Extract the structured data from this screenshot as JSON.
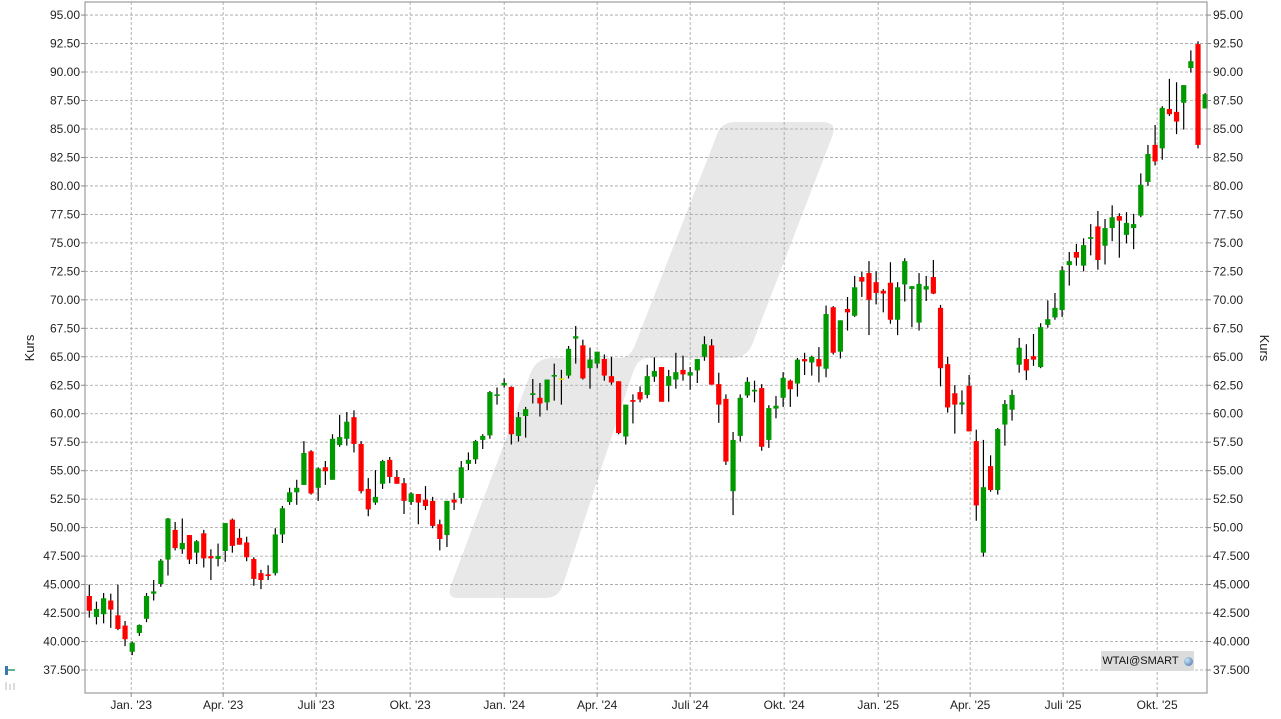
{
  "chart_data": {
    "type": "candlestick",
    "ylabel_left": "Kurs",
    "ylabel_right": "Kurs",
    "ylim": [
      35.5,
      96.5
    ],
    "y_ticks": [
      {
        "v": 95,
        "label": "95.00"
      },
      {
        "v": 92.5,
        "label": "92.50"
      },
      {
        "v": 90,
        "label": "90.00"
      },
      {
        "v": 87.5,
        "label": "87.50"
      },
      {
        "v": 85,
        "label": "85.00"
      },
      {
        "v": 82.5,
        "label": "82.50"
      },
      {
        "v": 80,
        "label": "80.00"
      },
      {
        "v": 77.5,
        "label": "77.50"
      },
      {
        "v": 75,
        "label": "75.00"
      },
      {
        "v": 72.5,
        "label": "72.50"
      },
      {
        "v": 70,
        "label": "70.00"
      },
      {
        "v": 67.5,
        "label": "67.50"
      },
      {
        "v": 65,
        "label": "65.00"
      },
      {
        "v": 62.5,
        "label": "62.50"
      },
      {
        "v": 60,
        "label": "60.00"
      },
      {
        "v": 57.5,
        "label": "57.50"
      },
      {
        "v": 55,
        "label": "55.00"
      },
      {
        "v": 52.5,
        "label": "52.50"
      },
      {
        "v": 50,
        "label": "50.00"
      },
      {
        "v": 47.5,
        "label": "47.500"
      },
      {
        "v": 45,
        "label": "45.000"
      },
      {
        "v": 42.5,
        "label": "42.500"
      },
      {
        "v": 40,
        "label": "40.000"
      },
      {
        "v": 37.5,
        "label": "37.500"
      }
    ],
    "x_ticks": [
      {
        "date": "2023-01-01",
        "label": "Jan. '23"
      },
      {
        "date": "2023-04-01",
        "label": "Apr. '23"
      },
      {
        "date": "2023-07-01",
        "label": "Juli '23"
      },
      {
        "date": "2023-10-01",
        "label": "Okt. '23"
      },
      {
        "date": "2024-01-01",
        "label": "Jan. '24"
      },
      {
        "date": "2024-04-01",
        "label": "Apr. '24"
      },
      {
        "date": "2024-07-01",
        "label": "Juli '24"
      },
      {
        "date": "2024-10-01",
        "label": "Okt. '24"
      },
      {
        "date": "2025-01-01",
        "label": "Jan. '25"
      },
      {
        "date": "2025-04-01",
        "label": "Apr. '25"
      },
      {
        "date": "2025-07-01",
        "label": "Juli '25"
      },
      {
        "date": "2025-10-01",
        "label": "Okt. '25"
      }
    ],
    "grid": true,
    "colors": {
      "up": "#009900",
      "down": "#ff0000",
      "unchanged": "#e6e600",
      "wick": "#000000",
      "watermark": "#e8e8e8",
      "grid": "#a0a0a0"
    },
    "columns": [
      "date",
      "open",
      "high",
      "low",
      "close"
    ],
    "candles": [
      [
        "2022-11-21",
        44.0,
        45.0,
        42.1,
        42.7
      ],
      [
        "2022-11-28",
        42.15,
        43.5,
        41.5,
        42.86
      ],
      [
        "2022-12-05",
        42.4,
        44.26,
        41.6,
        43.8
      ],
      [
        "2022-12-12",
        43.6,
        44.2,
        41.2,
        42.8
      ],
      [
        "2022-12-19",
        42.3,
        45.0,
        41.0,
        41.1
      ],
      [
        "2022-12-26",
        41.4,
        41.8,
        39.6,
        40.2
      ],
      [
        "2023-01-02",
        39.1,
        40.0,
        38.8,
        39.9
      ],
      [
        "2023-01-09",
        40.75,
        41.5,
        40.5,
        41.45
      ],
      [
        "2023-01-16",
        42.0,
        44.26,
        41.7,
        44.0
      ],
      [
        "2023-01-23",
        44.2,
        45.4,
        43.6,
        44.4
      ],
      [
        "2023-01-30",
        45.05,
        47.25,
        44.8,
        47.1
      ],
      [
        "2023-02-06",
        47.2,
        50.85,
        45.8,
        50.8
      ],
      [
        "2023-02-13",
        49.8,
        50.5,
        48.0,
        48.2
      ],
      [
        "2023-02-20",
        48.1,
        50.8,
        47.7,
        48.65
      ],
      [
        "2023-02-27",
        49.35,
        49.35,
        46.8,
        47.2
      ],
      [
        "2023-03-06",
        47.8,
        48.9,
        46.8,
        48.8
      ],
      [
        "2023-03-13",
        49.5,
        49.8,
        46.5,
        47.3
      ],
      [
        "2023-03-20",
        47.5,
        48.1,
        45.4,
        47.3
      ],
      [
        "2023-03-27",
        47.25,
        48.6,
        46.6,
        47.5
      ],
      [
        "2023-04-03",
        47.95,
        50.4,
        47.0,
        50.4
      ],
      [
        "2023-04-10",
        50.7,
        50.8,
        47.8,
        48.4
      ],
      [
        "2023-04-17",
        49.1,
        49.9,
        48.5,
        48.5
      ],
      [
        "2023-04-24",
        48.7,
        49.2,
        47.05,
        47.4
      ],
      [
        "2023-05-01",
        47.25,
        47.4,
        44.9,
        45.5
      ],
      [
        "2023-05-08",
        46.0,
        46.3,
        44.6,
        45.4
      ],
      [
        "2023-05-15",
        45.9,
        46.7,
        45.4,
        45.75
      ],
      [
        "2023-05-22",
        46.0,
        49.95,
        45.8,
        49.4
      ],
      [
        "2023-05-29",
        49.4,
        51.9,
        48.65,
        51.7
      ],
      [
        "2023-06-05",
        52.25,
        53.5,
        52.0,
        53.1
      ],
      [
        "2023-06-12",
        53.1,
        54.2,
        52.0,
        53.5
      ],
      [
        "2023-06-19",
        53.75,
        57.6,
        53.75,
        56.55
      ],
      [
        "2023-06-26",
        56.7,
        56.8,
        52.9,
        53.0
      ],
      [
        "2023-07-03",
        53.5,
        55.3,
        52.35,
        55.2
      ],
      [
        "2023-07-10",
        55.3,
        55.85,
        53.75,
        54.95
      ],
      [
        "2023-07-17",
        54.2,
        58.2,
        54.2,
        57.8
      ],
      [
        "2023-07-24",
        57.25,
        59.9,
        57.1,
        57.95
      ],
      [
        "2023-07-31",
        57.8,
        60.15,
        57.2,
        59.3
      ],
      [
        "2023-08-07",
        59.7,
        60.3,
        56.6,
        57.35
      ],
      [
        "2023-08-14",
        57.35,
        57.6,
        53.0,
        53.2
      ],
      [
        "2023-08-21",
        53.4,
        54.35,
        51.0,
        51.6
      ],
      [
        "2023-08-28",
        52.2,
        55.05,
        52.0,
        52.7
      ],
      [
        "2023-09-04",
        53.85,
        55.95,
        53.4,
        55.85
      ],
      [
        "2023-09-11",
        55.95,
        56.2,
        53.9,
        54.45
      ],
      [
        "2023-09-18",
        54.45,
        55.05,
        53.85,
        53.85
      ],
      [
        "2023-09-25",
        53.9,
        54.35,
        51.2,
        52.35
      ],
      [
        "2023-10-02",
        52.25,
        53.1,
        52.0,
        53.0
      ],
      [
        "2023-10-09",
        52.95,
        52.95,
        50.3,
        52.2
      ],
      [
        "2023-10-16",
        52.45,
        53.65,
        51.55,
        51.9
      ],
      [
        "2023-10-23",
        52.35,
        52.7,
        49.95,
        50.15
      ],
      [
        "2023-10-30",
        50.3,
        50.7,
        48.0,
        49.0
      ],
      [
        "2023-11-06",
        49.35,
        52.35,
        48.3,
        52.35
      ],
      [
        "2023-11-13",
        52.45,
        53.05,
        51.55,
        52.2
      ],
      [
        "2023-11-20",
        52.6,
        55.85,
        52.1,
        55.3
      ],
      [
        "2023-11-27",
        55.6,
        56.6,
        55.05,
        55.95
      ],
      [
        "2023-12-04",
        56.0,
        57.7,
        55.6,
        57.6
      ],
      [
        "2023-12-11",
        57.7,
        58.2,
        56.9,
        58.05
      ],
      [
        "2023-12-18",
        58.1,
        62.0,
        57.8,
        61.9
      ],
      [
        "2023-12-25",
        61.6,
        62.3,
        60.8,
        61.7
      ],
      [
        "2024-01-01",
        62.5,
        63.1,
        62.3,
        62.7
      ],
      [
        "2024-01-08",
        62.35,
        62.4,
        57.3,
        58.2
      ],
      [
        "2024-01-15",
        58.05,
        60.15,
        57.55,
        59.7
      ],
      [
        "2024-01-22",
        59.8,
        60.6,
        57.9,
        60.4
      ],
      [
        "2024-01-29",
        61.65,
        63.05,
        60.9,
        61.8
      ],
      [
        "2024-02-05",
        61.4,
        62.7,
        59.75,
        60.9
      ],
      [
        "2024-02-12",
        61.0,
        63.0,
        60.3,
        63.0
      ],
      [
        "2024-02-19",
        63.3,
        64.4,
        61.15,
        63.4
      ],
      [
        "2024-02-26",
        63.1,
        63.85,
        60.8,
        63.1
      ],
      [
        "2024-03-04",
        63.35,
        65.95,
        63.1,
        65.7
      ],
      [
        "2024-03-11",
        66.6,
        67.7,
        64.4,
        66.8
      ],
      [
        "2024-03-18",
        66.0,
        66.5,
        63.0,
        63.1
      ],
      [
        "2024-03-25",
        64.0,
        65.8,
        62.2,
        64.75
      ],
      [
        "2024-04-01",
        64.4,
        65.45,
        64.0,
        65.45
      ],
      [
        "2024-04-08",
        64.8,
        65.2,
        62.9,
        63.35
      ],
      [
        "2024-04-15",
        63.3,
        65.0,
        62.55,
        62.75
      ],
      [
        "2024-04-22",
        62.85,
        62.85,
        58.2,
        58.3
      ],
      [
        "2024-04-29",
        58.0,
        60.8,
        57.3,
        60.8
      ],
      [
        "2024-05-06",
        61.2,
        61.7,
        59.15,
        61.05
      ],
      [
        "2024-05-13",
        61.9,
        62.4,
        61.0,
        61.25
      ],
      [
        "2024-05-20",
        61.65,
        64.3,
        61.35,
        63.3
      ],
      [
        "2024-05-27",
        63.25,
        64.95,
        62.8,
        63.75
      ],
      [
        "2024-06-03",
        64.1,
        64.1,
        61.05,
        61.05
      ],
      [
        "2024-06-10",
        62.45,
        63.85,
        61.05,
        63.3
      ],
      [
        "2024-06-17",
        63.0,
        65.35,
        62.2,
        63.65
      ],
      [
        "2024-06-24",
        63.85,
        65.1,
        62.9,
        63.45
      ],
      [
        "2024-07-01",
        63.35,
        64.1,
        62.1,
        63.65
      ],
      [
        "2024-07-08",
        63.8,
        64.8,
        62.7,
        64.8
      ],
      [
        "2024-07-15",
        65.0,
        66.8,
        64.65,
        66.1
      ],
      [
        "2024-07-22",
        66.0,
        66.55,
        62.55,
        62.55
      ],
      [
        "2024-07-29",
        62.6,
        63.6,
        59.2,
        60.8
      ],
      [
        "2024-08-05",
        61.3,
        61.7,
        55.5,
        55.8
      ],
      [
        "2024-08-12",
        53.2,
        58.4,
        51.1,
        57.7
      ],
      [
        "2024-08-19",
        58.05,
        61.7,
        57.55,
        61.4
      ],
      [
        "2024-08-26",
        61.6,
        63.2,
        61.4,
        62.8
      ],
      [
        "2024-09-02",
        61.95,
        62.9,
        61.0,
        62.1
      ],
      [
        "2024-09-09",
        62.25,
        62.6,
        56.75,
        57.1
      ],
      [
        "2024-09-16",
        57.7,
        60.75,
        57.0,
        60.5
      ],
      [
        "2024-09-23",
        60.45,
        61.55,
        59.6,
        60.7
      ],
      [
        "2024-09-30",
        61.4,
        63.65,
        60.6,
        63.15
      ],
      [
        "2024-10-07",
        62.9,
        63.0,
        60.6,
        62.15
      ],
      [
        "2024-10-14",
        62.65,
        64.9,
        61.5,
        64.75
      ],
      [
        "2024-10-21",
        64.8,
        65.35,
        63.4,
        64.6
      ],
      [
        "2024-10-28",
        64.5,
        65.1,
        63.35,
        65.0
      ],
      [
        "2024-11-04",
        64.8,
        65.85,
        62.75,
        64.15
      ],
      [
        "2024-11-11",
        63.95,
        69.5,
        63.2,
        68.75
      ],
      [
        "2024-11-18",
        69.35,
        69.45,
        65.2,
        65.35
      ],
      [
        "2024-11-25",
        65.45,
        68.2,
        64.85,
        68.2
      ],
      [
        "2024-12-02",
        69.2,
        70.25,
        67.3,
        68.9
      ],
      [
        "2024-12-09",
        68.6,
        72.1,
        68.5,
        71.1
      ],
      [
        "2024-12-16",
        72.0,
        72.45,
        70.25,
        71.6
      ],
      [
        "2024-12-23",
        72.35,
        73.4,
        66.9,
        70.0
      ],
      [
        "2024-12-30",
        71.55,
        72.5,
        69.6,
        70.6
      ],
      [
        "2025-01-06",
        70.8,
        70.95,
        68.9,
        70.55
      ],
      [
        "2025-01-13",
        71.5,
        73.3,
        67.9,
        68.25
      ],
      [
        "2025-01-20",
        68.25,
        71.55,
        66.9,
        71.1
      ],
      [
        "2025-01-27",
        71.35,
        73.65,
        69.85,
        73.4
      ],
      [
        "2025-02-03",
        70.95,
        71.2,
        67.6,
        71.2
      ],
      [
        "2025-02-10",
        68.0,
        72.35,
        67.3,
        71.4
      ],
      [
        "2025-02-17",
        70.9,
        72.1,
        69.9,
        71.2
      ],
      [
        "2025-02-24",
        72.0,
        73.5,
        70.5,
        70.55
      ],
      [
        "2025-03-03",
        69.3,
        69.55,
        62.4,
        64.0
      ],
      [
        "2025-03-10",
        64.35,
        65.0,
        60.1,
        60.55
      ],
      [
        "2025-03-17",
        61.8,
        62.5,
        58.25,
        60.8
      ],
      [
        "2025-03-24",
        60.8,
        62.05,
        59.95,
        61.0
      ],
      [
        "2025-03-31",
        62.45,
        63.4,
        58.45,
        58.45
      ],
      [
        "2025-04-07",
        57.6,
        58.6,
        50.6,
        51.95
      ],
      [
        "2025-04-14",
        47.8,
        57.7,
        47.45,
        53.55
      ],
      [
        "2025-04-21",
        55.4,
        56.35,
        53.15,
        53.3
      ],
      [
        "2025-04-28",
        53.3,
        58.75,
        52.9,
        58.65
      ],
      [
        "2025-05-05",
        59.05,
        61.2,
        57.2,
        60.85
      ],
      [
        "2025-05-12",
        60.35,
        62.1,
        59.4,
        61.65
      ],
      [
        "2025-05-19",
        64.3,
        66.65,
        63.6,
        65.8
      ],
      [
        "2025-05-26",
        64.8,
        66.1,
        62.95,
        63.8
      ],
      [
        "2025-06-02",
        65.05,
        67.0,
        64.2,
        64.75
      ],
      [
        "2025-06-09",
        64.1,
        67.95,
        64.0,
        67.6
      ],
      [
        "2025-06-16",
        67.8,
        69.95,
        67.55,
        68.3
      ],
      [
        "2025-06-23",
        68.45,
        70.6,
        68.25,
        69.3
      ],
      [
        "2025-06-30",
        69.1,
        72.95,
        68.5,
        72.6
      ],
      [
        "2025-07-07",
        73.05,
        74.2,
        71.25,
        73.4
      ],
      [
        "2025-07-14",
        74.2,
        74.9,
        73.0,
        73.7
      ],
      [
        "2025-07-21",
        73.0,
        75.4,
        72.5,
        74.8
      ],
      [
        "2025-07-28",
        75.35,
        76.65,
        73.9,
        75.5
      ],
      [
        "2025-08-04",
        76.45,
        77.8,
        72.65,
        73.5
      ],
      [
        "2025-08-11",
        74.75,
        77.1,
        73.1,
        76.3
      ],
      [
        "2025-08-18",
        76.3,
        78.3,
        75.15,
        77.25
      ],
      [
        "2025-08-25",
        77.35,
        77.6,
        73.7,
        76.95
      ],
      [
        "2025-09-01",
        75.7,
        77.7,
        74.95,
        76.75
      ],
      [
        "2025-09-08",
        76.3,
        77.55,
        74.45,
        76.65
      ],
      [
        "2025-09-15",
        77.4,
        81.1,
        77.25,
        80.1
      ],
      [
        "2025-09-22",
        80.35,
        83.6,
        80.0,
        82.8
      ],
      [
        "2025-09-29",
        83.6,
        85.35,
        81.8,
        82.15
      ],
      [
        "2025-10-06",
        83.3,
        87.0,
        82.3,
        86.85
      ],
      [
        "2025-10-13",
        86.75,
        89.4,
        86.15,
        86.3
      ],
      [
        "2025-10-20",
        86.5,
        89.1,
        84.55,
        85.65
      ],
      [
        "2025-10-27",
        87.3,
        88.85,
        84.95,
        88.85
      ],
      [
        "2025-11-03",
        90.35,
        91.9,
        89.95,
        90.95
      ],
      [
        "2025-11-10",
        92.45,
        92.7,
        83.3,
        83.6
      ],
      [
        "2025-11-17",
        86.8,
        88.15,
        86.8,
        88.05
      ]
    ]
  },
  "symbol_badge": {
    "label": "WTAI@SMART",
    "icon": "globe-icon"
  },
  "side_tool": {
    "icon": "chart-tool-icon"
  }
}
